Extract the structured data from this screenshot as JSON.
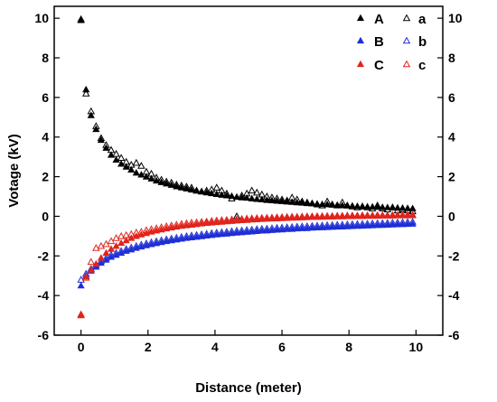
{
  "chart_data": {
    "type": "scatter",
    "title": "",
    "xlabel": "Distance (meter)",
    "ylabel": "Votage (kV)",
    "xlim": [
      -0.8,
      10.8
    ],
    "ylim": [
      -6,
      10.6
    ],
    "x_ticks": [
      0,
      2,
      4,
      6,
      8,
      10
    ],
    "y_ticks": [
      -6,
      -4,
      -2,
      0,
      2,
      4,
      6,
      8,
      10
    ],
    "y_ticks_right": [
      -6,
      -4,
      -2,
      0,
      2,
      4,
      6,
      8,
      10
    ],
    "grid": false,
    "legend_placement": "top-right",
    "series": [
      {
        "name": "A",
        "color": "#000000",
        "marker": "filled-triangle",
        "x": [
          0.0,
          0.15,
          0.3,
          0.45,
          0.6,
          0.75,
          0.9,
          1.05,
          1.2,
          1.35,
          1.5,
          1.65,
          1.8,
          1.95,
          2.1,
          2.25,
          2.4,
          2.55,
          2.7,
          2.85,
          3.0,
          3.15,
          3.3,
          3.45,
          3.6,
          3.75,
          3.9,
          4.05,
          4.2,
          4.35,
          4.5,
          4.65,
          4.8,
          4.95,
          5.1,
          5.25,
          5.4,
          5.55,
          5.7,
          5.85,
          6.0,
          6.15,
          6.3,
          6.45,
          6.6,
          6.75,
          6.9,
          7.05,
          7.2,
          7.35,
          7.5,
          7.65,
          7.8,
          7.95,
          8.1,
          8.25,
          8.4,
          8.55,
          8.7,
          8.85,
          9.0,
          9.15,
          9.3,
          9.45,
          9.6,
          9.75,
          9.9
        ],
        "y": [
          9.9,
          6.4,
          5.1,
          4.4,
          3.85,
          3.45,
          3.1,
          2.85,
          2.65,
          2.5,
          2.35,
          2.2,
          2.1,
          2.0,
          1.9,
          1.8,
          1.72,
          1.65,
          1.58,
          1.51,
          1.45,
          1.4,
          1.34,
          1.29,
          1.25,
          1.2,
          1.16,
          1.12,
          1.08,
          1.05,
          1.02,
          0.98,
          0.95,
          0.93,
          0.9,
          0.87,
          0.85,
          0.82,
          0.8,
          0.78,
          0.76,
          0.74,
          0.72,
          0.7,
          0.68,
          0.66,
          0.65,
          0.63,
          0.61,
          0.6,
          0.58,
          0.57,
          0.55,
          0.54,
          0.53,
          0.51,
          0.5,
          0.49,
          0.48,
          0.47,
          0.46,
          0.45,
          0.44,
          0.43,
          0.42,
          0.41,
          0.4
        ]
      },
      {
        "name": "a",
        "color": "#000000",
        "marker": "open-triangle",
        "x": [
          0.0,
          0.15,
          0.3,
          0.45,
          0.6,
          0.75,
          0.9,
          1.05,
          1.2,
          1.35,
          1.5,
          1.65,
          1.8,
          1.95,
          2.1,
          2.25,
          2.4,
          2.55,
          2.7,
          2.85,
          3.0,
          3.15,
          3.3,
          3.45,
          3.6,
          3.75,
          3.9,
          4.05,
          4.2,
          4.35,
          4.5,
          4.65,
          4.8,
          4.95,
          5.1,
          5.25,
          5.4,
          5.55,
          5.7,
          5.85,
          6.0,
          6.15,
          6.3,
          6.45,
          6.6,
          6.75,
          6.9,
          7.05,
          7.2,
          7.35,
          7.5,
          7.65,
          7.8,
          7.95,
          8.1,
          8.25,
          8.4,
          8.55,
          8.7,
          8.85,
          9.0,
          9.15,
          9.3,
          9.45,
          9.6,
          9.75,
          9.9
        ],
        "y": [
          9.95,
          6.2,
          5.3,
          4.55,
          3.95,
          3.6,
          3.35,
          3.15,
          2.95,
          2.75,
          2.6,
          2.7,
          2.55,
          2.25,
          2.15,
          1.95,
          1.85,
          1.75,
          1.7,
          1.6,
          1.55,
          1.5,
          1.45,
          1.3,
          1.25,
          1.3,
          1.35,
          1.45,
          1.3,
          1.15,
          0.9,
          0.0,
          1.05,
          1.15,
          1.3,
          1.2,
          1.1,
          1.0,
          0.95,
          0.9,
          0.85,
          0.8,
          0.95,
          0.85,
          0.75,
          0.7,
          0.65,
          0.6,
          0.55,
          0.75,
          0.6,
          0.55,
          0.7,
          0.55,
          0.5,
          0.45,
          0.5,
          0.45,
          0.4,
          0.55,
          0.4,
          0.35,
          0.45,
          0.3,
          0.35,
          0.3,
          0.25
        ]
      },
      {
        "name": "B",
        "color": "#1f2fd6",
        "marker": "filled-triangle",
        "x": [
          0.0,
          0.15,
          0.3,
          0.45,
          0.6,
          0.75,
          0.9,
          1.05,
          1.2,
          1.35,
          1.5,
          1.65,
          1.8,
          1.95,
          2.1,
          2.25,
          2.4,
          2.55,
          2.7,
          2.85,
          3.0,
          3.15,
          3.3,
          3.45,
          3.6,
          3.75,
          3.9,
          4.05,
          4.2,
          4.35,
          4.5,
          4.65,
          4.8,
          4.95,
          5.1,
          5.25,
          5.4,
          5.55,
          5.7,
          5.85,
          6.0,
          6.15,
          6.3,
          6.45,
          6.6,
          6.75,
          6.9,
          7.05,
          7.2,
          7.35,
          7.5,
          7.65,
          7.8,
          7.95,
          8.1,
          8.25,
          8.4,
          8.55,
          8.7,
          8.85,
          9.0,
          9.15,
          9.3,
          9.45,
          9.6,
          9.75,
          9.9
        ],
        "y": [
          -3.5,
          -3.0,
          -2.75,
          -2.55,
          -2.35,
          -2.2,
          -2.05,
          -1.95,
          -1.85,
          -1.75,
          -1.68,
          -1.6,
          -1.53,
          -1.47,
          -1.41,
          -1.36,
          -1.31,
          -1.26,
          -1.22,
          -1.18,
          -1.14,
          -1.1,
          -1.07,
          -1.04,
          -1.01,
          -0.98,
          -0.95,
          -0.92,
          -0.9,
          -0.88,
          -0.85,
          -0.83,
          -0.81,
          -0.79,
          -0.77,
          -0.75,
          -0.73,
          -0.72,
          -0.7,
          -0.68,
          -0.67,
          -0.65,
          -0.64,
          -0.62,
          -0.61,
          -0.6,
          -0.58,
          -0.57,
          -0.56,
          -0.55,
          -0.54,
          -0.53,
          -0.52,
          -0.51,
          -0.5,
          -0.49,
          -0.48,
          -0.47,
          -0.46,
          -0.45,
          -0.44,
          -0.43,
          -0.42,
          -0.41,
          -0.4,
          -0.39,
          -0.38
        ]
      },
      {
        "name": "b",
        "color": "#1f2fd6",
        "marker": "open-triangle",
        "x": [
          0.0,
          0.15,
          0.3,
          0.45,
          0.6,
          0.75,
          0.9,
          1.05,
          1.2,
          1.35,
          1.5,
          1.65,
          1.8,
          1.95,
          2.1,
          2.25,
          2.4,
          2.55,
          2.7,
          2.85,
          3.0,
          3.15,
          3.3,
          3.45,
          3.6,
          3.75,
          3.9,
          4.05,
          4.2,
          4.35,
          4.5,
          4.65,
          4.8,
          4.95,
          5.1,
          5.25,
          5.4,
          5.55,
          5.7,
          5.85,
          6.0,
          6.15,
          6.3,
          6.45,
          6.6,
          6.75,
          6.9,
          7.05,
          7.2,
          7.35,
          7.5,
          7.65,
          7.8,
          7.95,
          8.1,
          8.25,
          8.4,
          8.55,
          8.7,
          8.85,
          9.0,
          9.15,
          9.3,
          9.45,
          9.6,
          9.75,
          9.9
        ],
        "y": [
          -3.2,
          -2.9,
          -2.65,
          -2.45,
          -2.25,
          -2.1,
          -1.95,
          -1.85,
          -1.75,
          -1.65,
          -1.58,
          -1.5,
          -1.43,
          -1.37,
          -1.31,
          -1.26,
          -1.21,
          -1.16,
          -1.12,
          -1.08,
          -1.04,
          -1.0,
          -0.97,
          -0.94,
          -0.91,
          -0.88,
          -0.85,
          -0.82,
          -0.8,
          -0.78,
          -0.75,
          -0.73,
          -0.71,
          -0.69,
          -0.67,
          -0.65,
          -0.63,
          -0.62,
          -0.6,
          -0.58,
          -0.57,
          -0.55,
          -0.54,
          -0.52,
          -0.51,
          -0.5,
          -0.48,
          -0.47,
          -0.46,
          -0.45,
          -0.44,
          -0.43,
          -0.42,
          -0.41,
          -0.4,
          -0.39,
          -0.38,
          -0.37,
          -0.36,
          -0.35,
          -0.34,
          -0.33,
          -0.32,
          -0.31,
          -0.3,
          -0.29,
          -0.28
        ]
      },
      {
        "name": "C",
        "color": "#e0241c",
        "marker": "filled-triangle",
        "x": [
          0.0,
          0.15,
          0.3,
          0.45,
          0.6,
          0.75,
          0.9,
          1.05,
          1.2,
          1.35,
          1.5,
          1.65,
          1.8,
          1.95,
          2.1,
          2.25,
          2.4,
          2.55,
          2.7,
          2.85,
          3.0,
          3.15,
          3.3,
          3.45,
          3.6,
          3.75,
          3.9,
          4.05,
          4.2,
          4.35,
          4.5,
          4.65,
          4.8,
          4.95,
          5.1,
          5.25,
          5.4,
          5.55,
          5.7,
          5.85,
          6.0,
          6.15,
          6.3,
          6.45,
          6.6,
          6.75,
          6.9,
          7.05,
          7.2,
          7.35,
          7.5,
          7.65,
          7.8,
          7.95,
          8.1,
          8.25,
          8.4,
          8.55,
          8.7,
          8.85,
          9.0,
          9.15,
          9.3,
          9.45,
          9.6,
          9.75,
          9.9
        ],
        "y": [
          -5.0,
          -3.05,
          -2.7,
          -2.4,
          -2.1,
          -1.85,
          -1.65,
          -1.5,
          -1.35,
          -1.22,
          -1.1,
          -1.0,
          -0.92,
          -0.85,
          -0.78,
          -0.72,
          -0.67,
          -0.62,
          -0.57,
          -0.53,
          -0.49,
          -0.46,
          -0.43,
          -0.4,
          -0.37,
          -0.34,
          -0.32,
          -0.3,
          -0.28,
          -0.26,
          -0.24,
          -0.22,
          -0.2,
          -0.19,
          -0.17,
          -0.16,
          -0.14,
          -0.13,
          -0.12,
          -0.11,
          -0.1,
          -0.09,
          -0.08,
          -0.07,
          -0.06,
          -0.05,
          -0.04,
          -0.04,
          -0.03,
          -0.02,
          -0.02,
          -0.01,
          -0.01,
          0.0,
          0.0,
          0.01,
          0.01,
          0.02,
          0.02,
          0.02,
          0.03,
          0.03,
          0.03,
          0.04,
          0.04,
          0.04,
          0.05
        ]
      },
      {
        "name": "c",
        "color": "#e0241c",
        "marker": "open-triangle",
        "x": [
          0.0,
          0.15,
          0.3,
          0.45,
          0.6,
          0.75,
          0.9,
          1.05,
          1.2,
          1.35,
          1.5,
          1.65,
          1.8,
          1.95,
          2.1,
          2.25,
          2.4,
          2.55,
          2.7,
          2.85,
          3.0,
          3.15,
          3.3,
          3.45,
          3.6,
          3.75,
          3.9,
          4.05,
          4.2,
          4.35,
          4.5,
          4.65,
          4.8,
          4.95,
          5.1,
          5.25,
          5.4,
          5.55,
          5.7,
          5.85,
          6.0,
          6.15,
          6.3,
          6.45,
          6.6,
          6.75,
          6.9,
          7.05,
          7.2,
          7.35,
          7.5,
          7.65,
          7.8,
          7.95,
          8.1,
          8.25,
          8.4,
          8.55,
          8.7,
          8.85,
          9.0,
          9.15,
          9.3,
          9.45,
          9.6,
          9.75,
          9.9
        ],
        "y": [
          -4.95,
          -3.1,
          -2.3,
          -1.6,
          -1.5,
          -1.4,
          -1.25,
          -1.1,
          -1.0,
          -0.95,
          -0.9,
          -0.82,
          -0.78,
          -0.7,
          -0.65,
          -0.6,
          -0.55,
          -0.5,
          -0.46,
          -0.42,
          -0.38,
          -0.35,
          -0.32,
          -0.3,
          -0.28,
          -0.26,
          -0.23,
          -0.21,
          -0.19,
          -0.18,
          -0.16,
          -0.14,
          -0.13,
          -0.11,
          -0.1,
          -0.09,
          -0.08,
          -0.07,
          -0.06,
          -0.05,
          -0.04,
          -0.03,
          -0.02,
          -0.02,
          -0.01,
          0.0,
          0.0,
          0.01,
          0.01,
          0.02,
          0.02,
          0.03,
          0.03,
          0.04,
          0.04,
          0.04,
          0.05,
          0.05,
          0.05,
          0.06,
          0.06,
          0.06,
          0.07,
          0.07,
          0.07,
          0.08,
          0.08
        ]
      }
    ]
  }
}
